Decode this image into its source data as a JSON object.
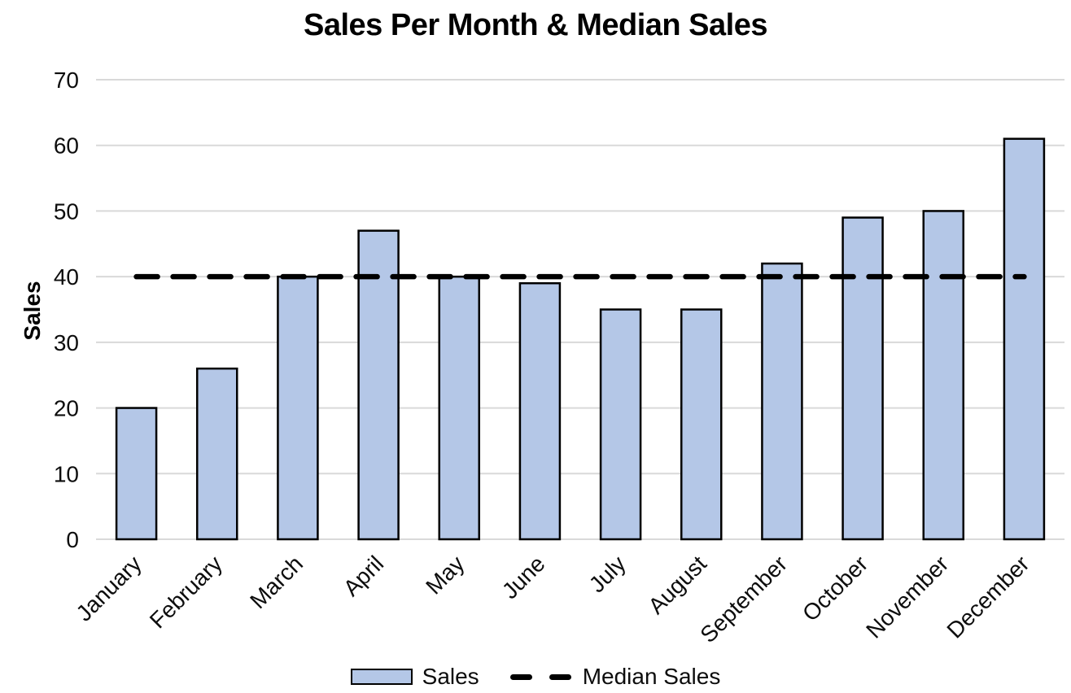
{
  "chart_data": {
    "type": "bar",
    "title": "Sales Per Month & Median Sales",
    "ylabel": "Sales",
    "xlabel": "",
    "categories": [
      "January",
      "February",
      "March",
      "April",
      "May",
      "June",
      "July",
      "August",
      "September",
      "October",
      "November",
      "December"
    ],
    "series": [
      {
        "name": "Sales",
        "type": "bar",
        "values": [
          20,
          26,
          40,
          47,
          40,
          39,
          35,
          35,
          42,
          49,
          50,
          61
        ],
        "fill": "#B4C7E7",
        "border": "#000000"
      },
      {
        "name": "Median Sales",
        "type": "line",
        "dashed": true,
        "value": 40,
        "color": "#000000"
      }
    ],
    "ylim": [
      0,
      70
    ],
    "yticks": [
      0,
      10,
      20,
      30,
      40,
      50,
      60,
      70
    ],
    "grid": true,
    "gridline_color": "#D9D9D9",
    "text_color": "#0d0d0d",
    "legend_position": "bottom"
  }
}
